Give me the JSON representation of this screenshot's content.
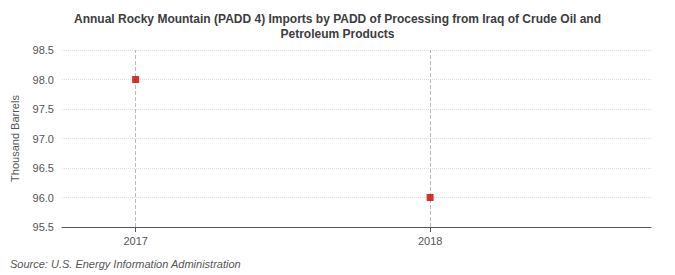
{
  "chart_data": {
    "type": "scatter",
    "title": "Annual Rocky Mountain (PADD 4) Imports by PADD of Processing from Iraq of Crude Oil and\nPetroleum Products",
    "x": [
      2017,
      2018
    ],
    "values": [
      98,
      96
    ],
    "color": "#CC0000",
    "marker": "square",
    "ylabel": "Thousand Barrels",
    "xlim": [
      2016.75,
      2018.75
    ],
    "xticks": [
      2017,
      2018
    ],
    "ylim": [
      95.5,
      98.5
    ],
    "yticks": [
      {
        "value": 95.5,
        "label": "95.5"
      },
      {
        "value": 96,
        "label": "96.0"
      },
      {
        "value": 96.5,
        "label": "96.5"
      },
      {
        "value": 97,
        "label": "97.0"
      },
      {
        "value": 97.5,
        "label": "97.5"
      },
      {
        "value": 98,
        "label": "98.0"
      },
      {
        "value": 98.5,
        "label": "98.5"
      }
    ],
    "vlines": [
      2017,
      2018
    ],
    "grid": true,
    "annotations": [
      "Source: U.S. Energy Information Administration"
    ]
  }
}
